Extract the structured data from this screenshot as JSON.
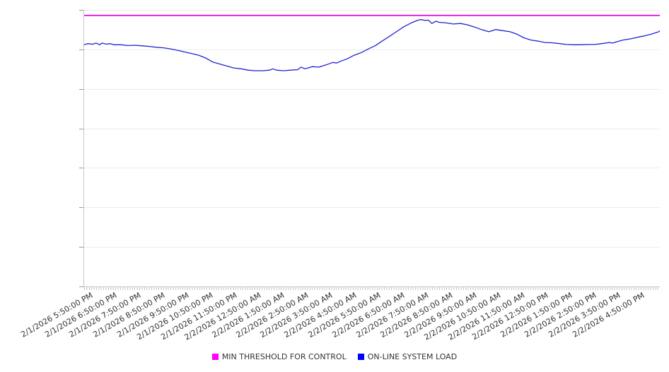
{
  "chart_data": {
    "type": "line",
    "title": "",
    "xlabel": "",
    "ylabel": "",
    "ylim": [
      0,
      100
    ],
    "y_gridline_divisions": 7,
    "y_axis_labels_visible": false,
    "grid": "horizontal",
    "legend_position": "bottom-center",
    "colors": {
      "gridline": "#ececec",
      "axis": "#c9c9c9",
      "minor_tick": "#c2c2c2",
      "y_tick": "#9a9a9a",
      "tick_label": "#333333"
    },
    "x_categories": [
      "2/1/2026 5:50:00 PM",
      "2/1/2026 6:50:00 PM",
      "2/1/2026 7:50:00 PM",
      "2/1/2026 8:50:00 PM",
      "2/1/2026 9:50:00 PM",
      "2/1/2026 10:50:00 PM",
      "2/1/2026 11:50:00 PM",
      "2/2/2026 12:50:00 AM",
      "2/2/2026 1:50:00 AM",
      "2/2/2026 2:50:00 AM",
      "2/2/2026 3:50:00 AM",
      "2/2/2026 4:50:00 AM",
      "2/2/2026 5:50:00 AM",
      "2/2/2026 6:50:00 AM",
      "2/2/2026 7:50:00 AM",
      "2/2/2026 8:50:00 AM",
      "2/2/2026 9:50:00 AM",
      "2/2/2026 10:50:00 AM",
      "2/2/2026 11:50:00 AM",
      "2/2/2026 12:50:00 PM",
      "2/2/2026 1:50:00 PM",
      "2/2/2026 2:50:00 PM",
      "2/2/2026 3:50:00 PM",
      "2/2/2026 4:50:00 PM"
    ],
    "series": [
      {
        "name": "MIN THRESHOLD FOR CONTROL",
        "type": "threshold-line",
        "color": "#ff00ff",
        "line_color": "#e318e3",
        "value": 98
      },
      {
        "name": "ON-LINE SYSTEM LOAD",
        "type": "line",
        "color": "#0000ff",
        "line_color": "#2222cf",
        "points": [
          [
            0.0,
            87.4
          ],
          [
            0.006,
            87.8
          ],
          [
            0.015,
            87.6
          ],
          [
            0.021,
            88.0
          ],
          [
            0.027,
            87.4
          ],
          [
            0.031,
            88.0
          ],
          [
            0.039,
            87.6
          ],
          [
            0.045,
            87.8
          ],
          [
            0.052,
            87.4
          ],
          [
            0.064,
            87.4
          ],
          [
            0.076,
            87.1
          ],
          [
            0.088,
            87.2
          ],
          [
            0.101,
            87.0
          ],
          [
            0.113,
            86.8
          ],
          [
            0.125,
            86.5
          ],
          [
            0.138,
            86.3
          ],
          [
            0.15,
            85.9
          ],
          [
            0.162,
            85.4
          ],
          [
            0.174,
            84.8
          ],
          [
            0.187,
            84.2
          ],
          [
            0.199,
            83.6
          ],
          [
            0.211,
            82.6
          ],
          [
            0.224,
            81.1
          ],
          [
            0.236,
            80.4
          ],
          [
            0.248,
            79.7
          ],
          [
            0.26,
            79.0
          ],
          [
            0.273,
            78.7
          ],
          [
            0.285,
            78.2
          ],
          [
            0.297,
            78.0
          ],
          [
            0.31,
            78.0
          ],
          [
            0.322,
            78.2
          ],
          [
            0.328,
            78.7
          ],
          [
            0.334,
            78.2
          ],
          [
            0.346,
            78.0
          ],
          [
            0.359,
            78.2
          ],
          [
            0.371,
            78.4
          ],
          [
            0.377,
            79.3
          ],
          [
            0.383,
            78.7
          ],
          [
            0.389,
            79.0
          ],
          [
            0.396,
            79.5
          ],
          [
            0.408,
            79.3
          ],
          [
            0.42,
            80.1
          ],
          [
            0.432,
            81.0
          ],
          [
            0.439,
            80.8
          ],
          [
            0.445,
            81.4
          ],
          [
            0.457,
            82.3
          ],
          [
            0.469,
            83.6
          ],
          [
            0.482,
            84.6
          ],
          [
            0.494,
            85.9
          ],
          [
            0.506,
            87.1
          ],
          [
            0.518,
            88.8
          ],
          [
            0.531,
            90.5
          ],
          [
            0.543,
            92.2
          ],
          [
            0.555,
            93.9
          ],
          [
            0.568,
            95.3
          ],
          [
            0.58,
            96.3
          ],
          [
            0.586,
            96.5
          ],
          [
            0.592,
            96.2
          ],
          [
            0.598,
            96.3
          ],
          [
            0.604,
            95.1
          ],
          [
            0.611,
            95.9
          ],
          [
            0.617,
            95.5
          ],
          [
            0.629,
            95.3
          ],
          [
            0.641,
            94.9
          ],
          [
            0.654,
            95.1
          ],
          [
            0.666,
            94.6
          ],
          [
            0.678,
            93.8
          ],
          [
            0.69,
            92.9
          ],
          [
            0.703,
            92.1
          ],
          [
            0.715,
            92.9
          ],
          [
            0.727,
            92.5
          ],
          [
            0.74,
            92.1
          ],
          [
            0.752,
            91.2
          ],
          [
            0.764,
            89.9
          ],
          [
            0.776,
            89.1
          ],
          [
            0.789,
            88.7
          ],
          [
            0.801,
            88.2
          ],
          [
            0.813,
            88.1
          ],
          [
            0.826,
            87.8
          ],
          [
            0.838,
            87.5
          ],
          [
            0.85,
            87.4
          ],
          [
            0.862,
            87.4
          ],
          [
            0.875,
            87.5
          ],
          [
            0.887,
            87.5
          ],
          [
            0.899,
            87.8
          ],
          [
            0.912,
            88.2
          ],
          [
            0.918,
            88.0
          ],
          [
            0.924,
            88.4
          ],
          [
            0.936,
            89.1
          ],
          [
            0.948,
            89.5
          ],
          [
            0.961,
            90.1
          ],
          [
            0.973,
            90.6
          ],
          [
            0.985,
            91.2
          ],
          [
            0.998,
            92.1
          ],
          [
            1.0,
            92.5
          ]
        ]
      }
    ]
  },
  "legend": {
    "items": [
      {
        "label": "MIN THRESHOLD FOR CONTROL",
        "color": "#ff00ff"
      },
      {
        "label": "ON-LINE SYSTEM LOAD",
        "color": "#0000ff"
      }
    ]
  }
}
